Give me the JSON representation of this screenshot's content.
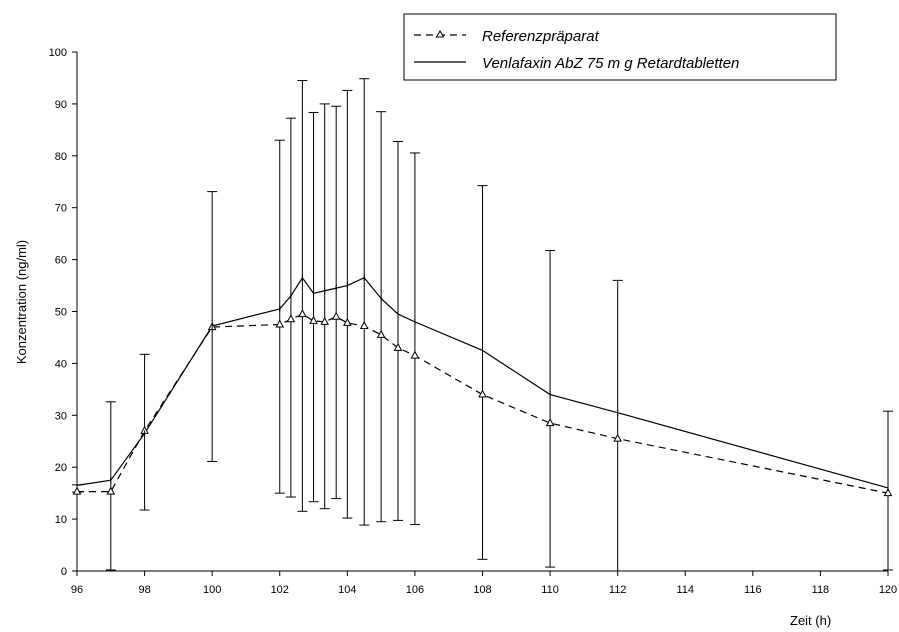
{
  "chart_data": {
    "type": "line",
    "xlabel": "Zeit (h)",
    "ylabel": "Konzentration (ng/ml)",
    "xlim": [
      96,
      120
    ],
    "ylim": [
      0,
      100
    ],
    "x_ticks": [
      "96",
      "98",
      "100",
      "102",
      "104",
      "106",
      "108",
      "110",
      "112",
      "114",
      "116",
      "118",
      "120"
    ],
    "y_ticks": [
      "0",
      "10",
      "20",
      "30",
      "40",
      "50",
      "60",
      "70",
      "80",
      "90",
      "100"
    ],
    "grid": false,
    "legend_position": "top-right",
    "x": [
      96,
      97,
      98,
      100,
      102,
      102.33,
      102.67,
      103,
      103.33,
      103.67,
      104,
      104.5,
      105,
      105.5,
      106,
      108,
      110,
      112,
      120
    ],
    "series": [
      {
        "name": "Referenzpräparat",
        "style": "dashed",
        "marker": "triangle",
        "values": [
          15.3,
          15.3,
          27.0,
          47.0,
          47.5,
          48.5,
          49.5,
          48.2,
          48.0,
          49.0,
          47.8,
          47.2,
          45.5,
          43.0,
          41.5,
          34.0,
          28.5,
          25.5,
          15.0
        ],
        "errors": [
          0.7,
          16.2,
          15.0,
          26.0,
          34.0,
          36.5,
          41.5,
          37.5,
          39.0,
          37.8,
          41.2,
          43.0,
          39.5,
          36.5,
          35.8,
          36.0,
          30.5,
          28.0,
          15.3
        ]
      },
      {
        "name": "Venlafaxin AbZ 75 m g Retardtabletten",
        "style": "solid",
        "marker": "plus",
        "values": [
          16.5,
          17.5,
          26.5,
          47.2,
          50.5,
          53.0,
          56.5,
          53.5,
          54.0,
          54.5,
          55.0,
          56.5,
          52.5,
          49.5,
          48.0,
          42.5,
          34.0,
          30.5,
          16.0
        ],
        "errors": [
          0.7,
          16.2,
          15.0,
          26.0,
          34.0,
          36.5,
          41.5,
          37.5,
          39.0,
          37.8,
          41.2,
          43.0,
          39.5,
          36.5,
          35.8,
          36.0,
          30.5,
          28.0,
          15.3
        ]
      }
    ]
  }
}
